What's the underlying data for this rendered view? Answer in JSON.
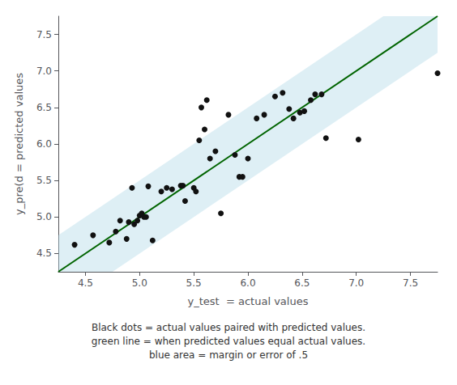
{
  "chart_data": {
    "type": "scatter",
    "xlabel": "y_test  = actual values",
    "ylabel": "y_pre(d = predicted values",
    "caption": "Black dots = actual values paired with predicted values.\ngreen line = when predicted values equal actual values.\nblue area = margin or error of .5",
    "xlim": [
      4.25,
      7.75
    ],
    "ylim": [
      4.25,
      7.75
    ],
    "xticks": [
      4.5,
      {
        "value": 5.0,
        "label": "5.0"
      },
      5.5,
      {
        "value": 6.0,
        "label": "6.0"
      },
      6.5,
      {
        "value": 7.0,
        "label": "7.0"
      },
      7.5
    ],
    "yticks": [
      4.5,
      {
        "value": 5.0,
        "label": "5.0"
      },
      5.5,
      {
        "value": 6.0,
        "label": "6.0"
      },
      6.5,
      {
        "value": 7.0,
        "label": "7.0"
      },
      7.5
    ],
    "grid": false,
    "band": {
      "margin": 0.5,
      "color": "#add8e6"
    },
    "reference_line": {
      "color": "#006400",
      "line_style": "solid"
    },
    "series": [
      {
        "type": "scatter",
        "color": "#111111",
        "marker": "circle",
        "x": [
          4.4,
          4.57,
          4.72,
          4.78,
          4.82,
          4.88,
          4.9,
          4.93,
          4.95,
          4.98,
          5.0,
          5.02,
          5.04,
          5.06,
          5.08,
          5.12,
          5.2,
          5.25,
          5.3,
          5.38,
          5.4,
          5.42,
          5.5,
          5.52,
          5.55,
          5.57,
          5.62,
          5.65,
          5.7,
          5.75,
          5.82,
          5.88,
          5.92,
          5.95,
          5.6,
          6.0,
          6.08,
          6.15,
          6.25,
          6.32,
          6.38,
          6.42,
          6.48,
          6.52,
          6.58,
          6.62,
          6.68,
          6.72,
          7.02,
          7.75
        ],
        "values": [
          4.62,
          4.75,
          4.65,
          4.8,
          4.95,
          4.7,
          4.93,
          5.4,
          4.9,
          4.95,
          5.02,
          5.05,
          5.0,
          5.0,
          5.42,
          4.68,
          5.35,
          5.4,
          5.38,
          5.43,
          5.43,
          5.22,
          5.4,
          5.35,
          6.05,
          6.5,
          6.6,
          5.8,
          5.9,
          5.05,
          6.4,
          5.85,
          5.55,
          5.55,
          6.2,
          5.8,
          6.35,
          6.4,
          6.65,
          6.7,
          6.48,
          6.35,
          6.43,
          6.45,
          6.6,
          6.68,
          6.68,
          6.08,
          6.06,
          6.97
        ]
      }
    ]
  }
}
